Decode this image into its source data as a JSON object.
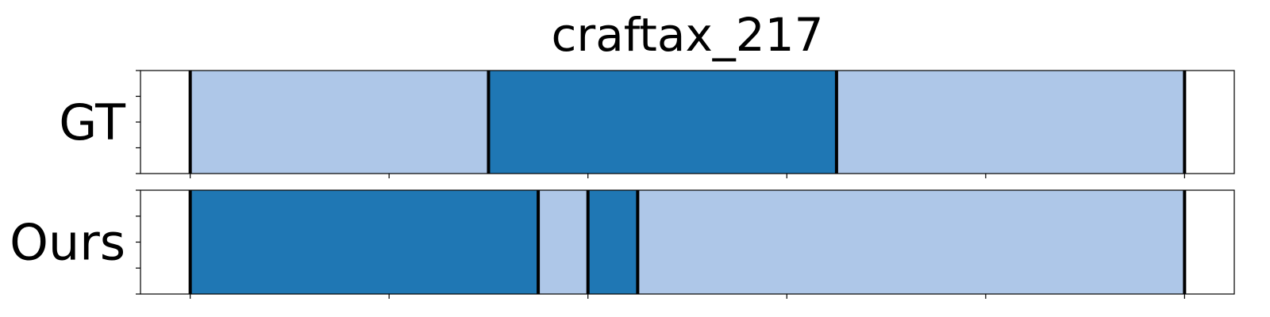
{
  "chart_data": {
    "type": "segment-timeline",
    "title": "craftax_217",
    "x_range": [
      -1,
      21
    ],
    "boundary_color": "#000000",
    "colors": {
      "light": "#aec7e8",
      "dark": "#1f77b4"
    },
    "rows": [
      {
        "label": "GT",
        "segments": [
          {
            "start": 0,
            "end": 6,
            "color": "light"
          },
          {
            "start": 6,
            "end": 13,
            "color": "dark"
          },
          {
            "start": 13,
            "end": 20,
            "color": "light"
          }
        ],
        "boundaries": [
          0,
          6,
          13,
          20
        ]
      },
      {
        "label": "Ours",
        "segments": [
          {
            "start": 0,
            "end": 7,
            "color": "dark"
          },
          {
            "start": 7,
            "end": 8,
            "color": "light"
          },
          {
            "start": 8,
            "end": 9,
            "color": "dark"
          },
          {
            "start": 9,
            "end": 20,
            "color": "light"
          }
        ],
        "boundaries": [
          0,
          7,
          8,
          9,
          20
        ]
      }
    ],
    "x_ticks": [
      0,
      4,
      8,
      12,
      16,
      20
    ],
    "y_ticks_per_row": 5,
    "grid": false
  }
}
